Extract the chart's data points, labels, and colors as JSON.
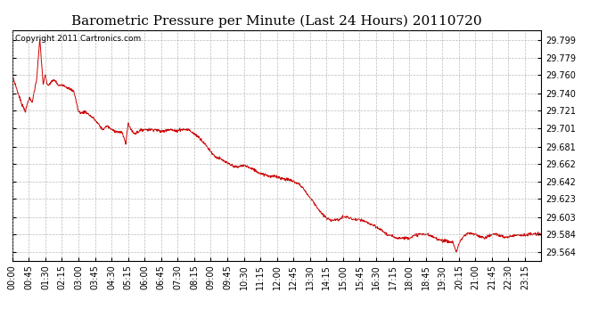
{
  "title": "Barometric Pressure per Minute (Last 24 Hours) 20110720",
  "copyright": "Copyright 2011 Cartronics.com",
  "line_color": "#cc0000",
  "background_color": "#ffffff",
  "grid_color": "#aaaaaa",
  "yticks": [
    29.564,
    29.584,
    29.603,
    29.623,
    29.642,
    29.662,
    29.681,
    29.701,
    29.721,
    29.74,
    29.76,
    29.779,
    29.799
  ],
  "ylim": [
    29.555,
    29.81
  ],
  "xtick_labels": [
    "00:00",
    "00:45",
    "01:30",
    "02:15",
    "03:00",
    "03:45",
    "04:30",
    "05:15",
    "06:00",
    "06:45",
    "07:30",
    "08:15",
    "09:00",
    "09:45",
    "10:30",
    "11:15",
    "12:00",
    "12:45",
    "13:30",
    "14:15",
    "15:00",
    "15:45",
    "16:30",
    "17:15",
    "18:00",
    "18:45",
    "19:30",
    "20:15",
    "21:00",
    "21:45",
    "22:30",
    "23:15"
  ],
  "title_fontsize": 11,
  "tick_fontsize": 7,
  "copyright_fontsize": 6.5,
  "waypoints": [
    [
      0.0,
      29.76
    ],
    [
      0.4,
      29.73
    ],
    [
      0.6,
      29.72
    ],
    [
      0.75,
      29.735
    ],
    [
      0.9,
      29.73
    ],
    [
      1.1,
      29.755
    ],
    [
      1.25,
      29.8
    ],
    [
      1.4,
      29.75
    ],
    [
      1.5,
      29.76
    ],
    [
      1.6,
      29.748
    ],
    [
      1.75,
      29.752
    ],
    [
      1.9,
      29.755
    ],
    [
      2.0,
      29.752
    ],
    [
      2.1,
      29.748
    ],
    [
      2.25,
      29.75
    ],
    [
      2.4,
      29.748
    ],
    [
      2.6,
      29.745
    ],
    [
      2.8,
      29.742
    ],
    [
      3.0,
      29.72
    ],
    [
      3.15,
      29.718
    ],
    [
      3.3,
      29.72
    ],
    [
      3.5,
      29.716
    ],
    [
      3.7,
      29.712
    ],
    [
      3.9,
      29.706
    ],
    [
      4.1,
      29.7
    ],
    [
      4.3,
      29.704
    ],
    [
      4.5,
      29.7
    ],
    [
      4.7,
      29.698
    ],
    [
      5.0,
      29.696
    ],
    [
      5.15,
      29.684
    ],
    [
      5.25,
      29.706
    ],
    [
      5.4,
      29.7
    ],
    [
      5.5,
      29.696
    ],
    [
      5.6,
      29.696
    ],
    [
      5.75,
      29.698
    ],
    [
      5.9,
      29.7
    ],
    [
      6.0,
      29.7
    ],
    [
      6.15,
      29.7
    ],
    [
      6.3,
      29.7
    ],
    [
      6.5,
      29.7
    ],
    [
      6.7,
      29.698
    ],
    [
      6.9,
      29.698
    ],
    [
      7.0,
      29.7
    ],
    [
      7.2,
      29.7
    ],
    [
      7.4,
      29.698
    ],
    [
      7.6,
      29.7
    ],
    [
      7.8,
      29.7
    ],
    [
      8.0,
      29.7
    ],
    [
      8.2,
      29.696
    ],
    [
      8.4,
      29.693
    ],
    [
      8.6,
      29.688
    ],
    [
      8.8,
      29.682
    ],
    [
      9.0,
      29.676
    ],
    [
      9.2,
      29.67
    ],
    [
      9.4,
      29.668
    ],
    [
      9.6,
      29.665
    ],
    [
      9.8,
      29.662
    ],
    [
      10.0,
      29.66
    ],
    [
      10.2,
      29.658
    ],
    [
      10.4,
      29.66
    ],
    [
      10.6,
      29.66
    ],
    [
      10.8,
      29.657
    ],
    [
      11.0,
      29.655
    ],
    [
      11.2,
      29.652
    ],
    [
      11.5,
      29.65
    ],
    [
      11.7,
      29.648
    ],
    [
      12.0,
      29.648
    ],
    [
      12.2,
      29.646
    ],
    [
      12.4,
      29.645
    ],
    [
      12.6,
      29.644
    ],
    [
      12.8,
      29.642
    ],
    [
      13.0,
      29.64
    ],
    [
      13.2,
      29.635
    ],
    [
      13.4,
      29.628
    ],
    [
      13.6,
      29.622
    ],
    [
      13.8,
      29.615
    ],
    [
      14.0,
      29.608
    ],
    [
      14.2,
      29.603
    ],
    [
      14.4,
      29.6
    ],
    [
      14.6,
      29.6
    ],
    [
      14.8,
      29.6
    ],
    [
      15.0,
      29.603
    ],
    [
      15.2,
      29.603
    ],
    [
      15.4,
      29.601
    ],
    [
      15.6,
      29.6
    ],
    [
      15.8,
      29.6
    ],
    [
      16.0,
      29.598
    ],
    [
      16.2,
      29.596
    ],
    [
      16.5,
      29.592
    ],
    [
      16.8,
      29.588
    ],
    [
      17.0,
      29.584
    ],
    [
      17.2,
      29.582
    ],
    [
      17.5,
      29.58
    ],
    [
      17.8,
      29.58
    ],
    [
      18.0,
      29.58
    ],
    [
      18.2,
      29.582
    ],
    [
      18.4,
      29.584
    ],
    [
      18.6,
      29.584
    ],
    [
      18.8,
      29.584
    ],
    [
      19.0,
      29.582
    ],
    [
      19.2,
      29.58
    ],
    [
      19.4,
      29.578
    ],
    [
      19.6,
      29.577
    ],
    [
      19.8,
      29.576
    ],
    [
      20.0,
      29.575
    ],
    [
      20.15,
      29.564
    ],
    [
      20.3,
      29.576
    ],
    [
      20.5,
      29.582
    ],
    [
      20.7,
      29.585
    ],
    [
      21.0,
      29.584
    ],
    [
      21.2,
      29.582
    ],
    [
      21.4,
      29.58
    ],
    [
      21.6,
      29.582
    ],
    [
      21.8,
      29.584
    ],
    [
      22.0,
      29.584
    ],
    [
      22.2,
      29.582
    ],
    [
      22.4,
      29.58
    ],
    [
      22.6,
      29.582
    ],
    [
      22.8,
      29.583
    ],
    [
      23.0,
      29.584
    ],
    [
      23.2,
      29.583
    ],
    [
      23.5,
      29.584
    ],
    [
      24.0,
      29.584
    ]
  ]
}
